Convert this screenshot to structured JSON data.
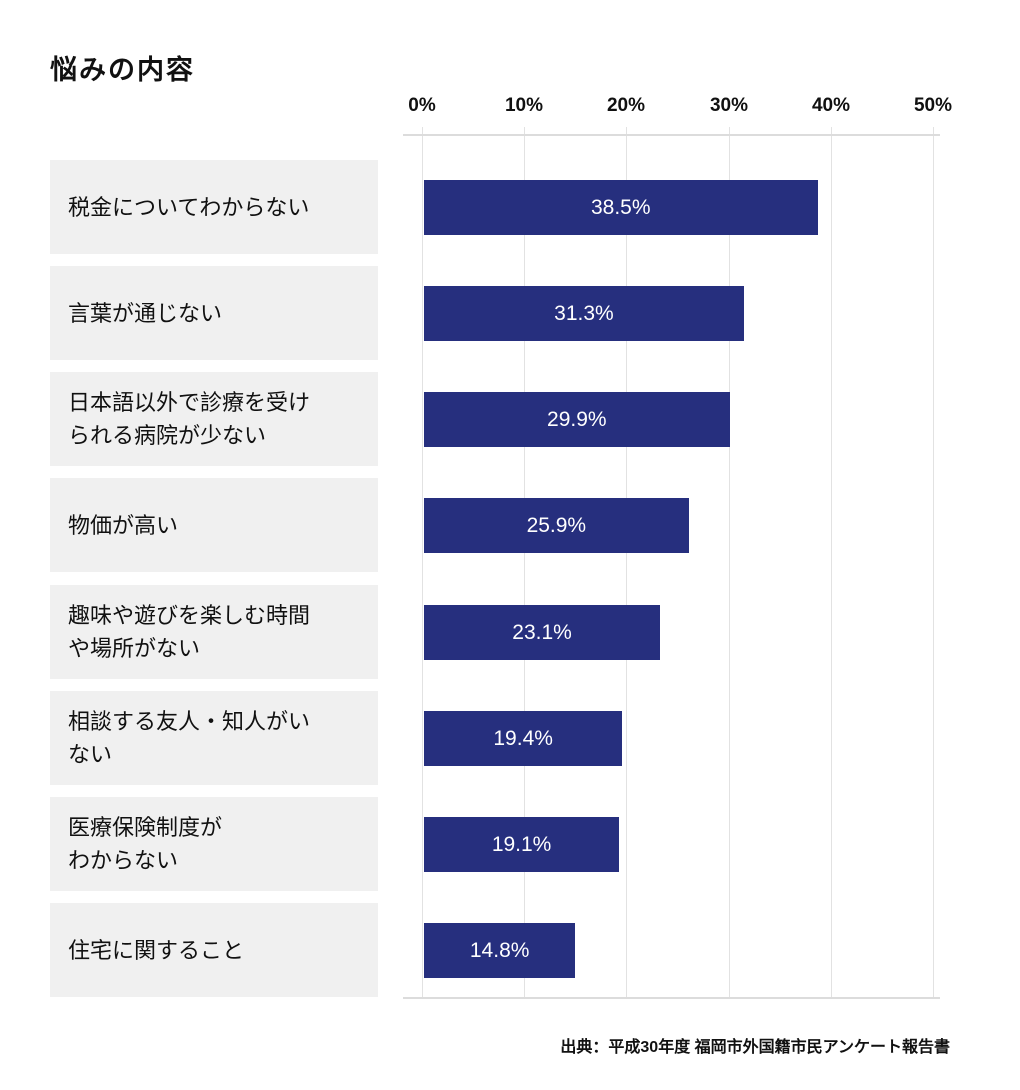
{
  "chart_data": {
    "type": "bar",
    "orientation": "horizontal",
    "title": "悩みの内容",
    "x_axis": {
      "position": "top",
      "min": 0,
      "max": 50,
      "unit": "%",
      "ticks": [
        "0%",
        "10%",
        "20%",
        "30%",
        "40%",
        "50%"
      ]
    },
    "grid": true,
    "bar_color": "#262f7e",
    "row_label_bg": "#f0f0f0",
    "rows": [
      {
        "label": "税金についてわからない",
        "value": 38.5,
        "value_label": "38.5%"
      },
      {
        "label": "言葉が通じない",
        "value": 31.3,
        "value_label": "31.3%"
      },
      {
        "label": "日本語以外で診療を受け\nられる病院が少ない",
        "value": 29.9,
        "value_label": "29.9%"
      },
      {
        "label": "物価が高い",
        "value": 25.9,
        "value_label": "25.9%"
      },
      {
        "label": "趣味や遊びを楽しむ時間\nや場所がない",
        "value": 23.1,
        "value_label": "23.1%"
      },
      {
        "label": "相談する友人・知人がい\nない",
        "value": 19.4,
        "value_label": "19.4%"
      },
      {
        "label": "医療保険制度が\nわからない",
        "value": 19.1,
        "value_label": "19.1%"
      },
      {
        "label": "住宅に関すること",
        "value": 14.8,
        "value_label": "14.8%"
      }
    ],
    "source": "出典：平成30年度 福岡市外国籍市民アンケート報告書"
  }
}
